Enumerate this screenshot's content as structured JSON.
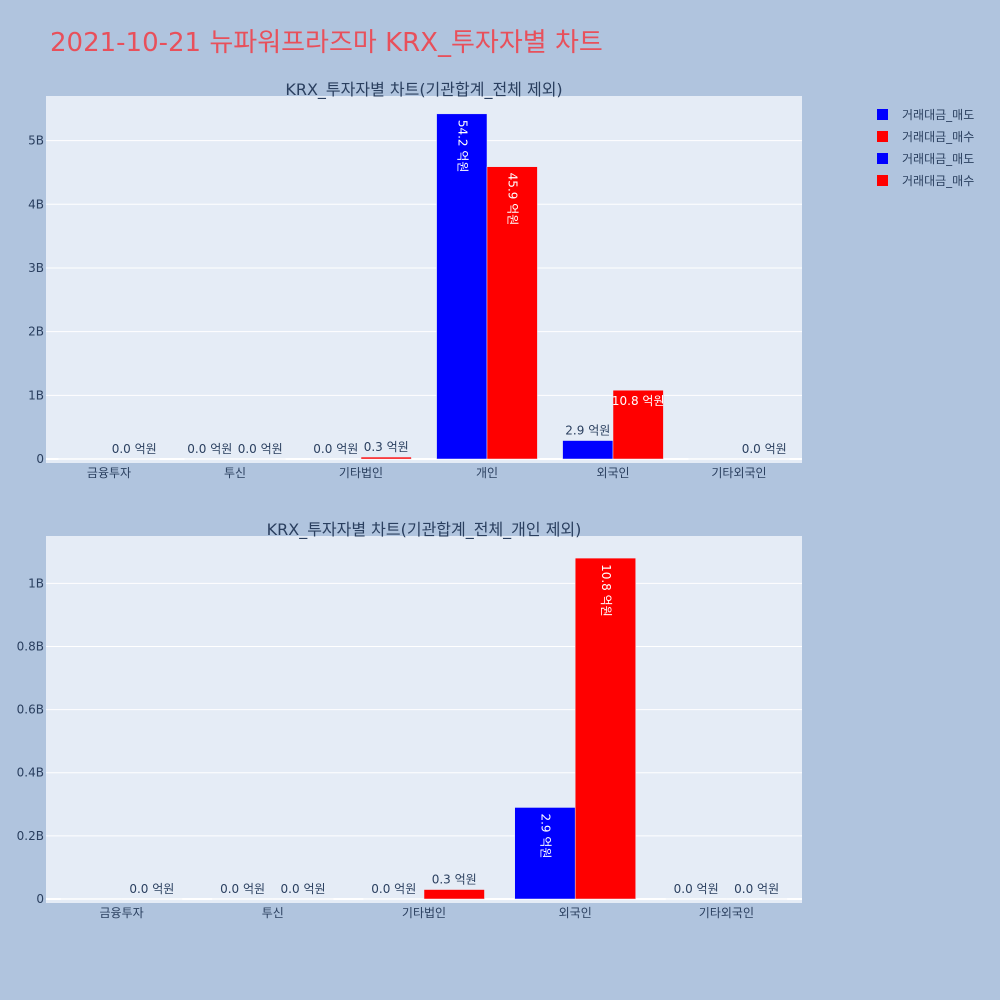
{
  "page": {
    "title": "2021-10-21 뉴파워프라즈마 KRX_투자자별 차트"
  },
  "legend": [
    {
      "name": "거래대금_매도",
      "color": "#0000ff"
    },
    {
      "name": "거래대금_매수",
      "color": "#ff0000"
    },
    {
      "name": "거래대금_매도",
      "color": "#0000ff"
    },
    {
      "name": "거래대금_매수",
      "color": "#ff0000"
    }
  ],
  "chart_data": [
    {
      "type": "bar",
      "title": "KRX_투자자별 차트(기관합계_전체 제외)",
      "categories": [
        "금융투자",
        "투신",
        "기타법인",
        "개인",
        "외국인",
        "기타외국인"
      ],
      "ylim": [
        0,
        5.7
      ],
      "yticks": [
        0,
        1,
        2,
        3,
        4,
        5
      ],
      "ytick_labels": [
        "0",
        "1B",
        "2B",
        "3B",
        "4B",
        "5B"
      ],
      "grid": true,
      "series": [
        {
          "name": "거래대금_매도",
          "color": "#0000ff",
          "values": [
            0,
            0,
            0,
            5.42,
            0.29,
            0
          ],
          "labels": [
            "",
            "0.0 억원",
            "0.0 억원",
            "54.2 억원",
            "2.9 억원",
            ""
          ]
        },
        {
          "name": "거래대금_매수",
          "color": "#ff0000",
          "values": [
            0,
            0,
            0.03,
            4.59,
            1.08,
            0
          ],
          "labels": [
            "0.0 억원",
            "0.0 억원",
            "0.3 억원",
            "45.9 억원",
            "10.8 억원",
            "0.0 억원"
          ]
        }
      ]
    },
    {
      "type": "bar",
      "title": "KRX_투자자별 차트(기관합계_전체_개인 제외)",
      "categories": [
        "금융투자",
        "투신",
        "기타법인",
        "외국인",
        "기타외국인"
      ],
      "ylim": [
        0,
        1.15
      ],
      "yticks": [
        0,
        0.2,
        0.4,
        0.6,
        0.8,
        1.0
      ],
      "ytick_labels": [
        "0",
        "0.2B",
        "0.4B",
        "0.6B",
        "0.8B",
        "1B"
      ],
      "grid": true,
      "series": [
        {
          "name": "거래대금_매도",
          "color": "#0000ff",
          "values": [
            0,
            0,
            0,
            0.29,
            0
          ],
          "labels": [
            "",
            "0.0 억원",
            "0.0 억원",
            "2.9 억원",
            "0.0 억원"
          ]
        },
        {
          "name": "거래대금_매수",
          "color": "#ff0000",
          "values": [
            0,
            0,
            0.03,
            1.08,
            0
          ],
          "labels": [
            "0.0 억원",
            "0.0 억원",
            "0.3 억원",
            "10.8 억원",
            "0.0 억원"
          ]
        }
      ]
    }
  ]
}
